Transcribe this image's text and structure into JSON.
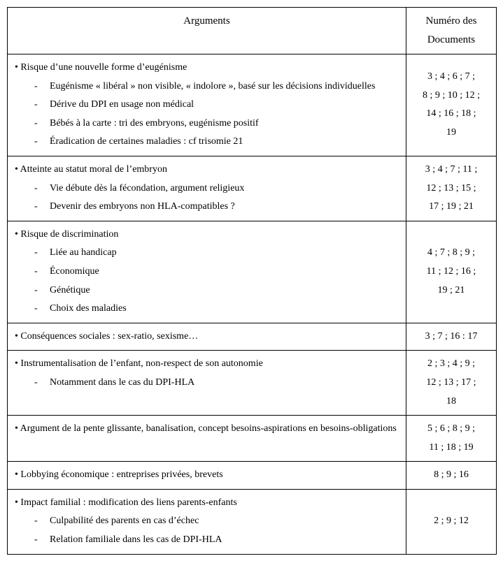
{
  "header": {
    "col_arguments": "Arguments",
    "col_numero_l1": "Numéro des",
    "col_numero_l2": "Documents"
  },
  "rows": [
    {
      "lead": "• Risque d’une nouvelle forme d’eugénisme",
      "subs": [
        "Eugénisme « libéral » non visible, « indolore », basé sur les décisions individuelles",
        "Dérive du DPI en usage non médical",
        "Bébés à la carte : tri des embryons, eugénisme positif",
        "Éradication de certaines maladies : cf trisomie 21"
      ],
      "num_lines": [
        "3 ; 4 ; 6 ; 7 ;",
        "8 ; 9 ; 10 ; 12 ;",
        "14 ; 16 ; 18 ;",
        "19"
      ]
    },
    {
      "lead": "• Atteinte au statut moral de l’embryon",
      "subs": [
        "Vie débute dès la fécondation, argument religieux",
        "Devenir des embryons non HLA-compatibles ?"
      ],
      "num_lines": [
        "3 ; 4 ; 7 ; 11 ;",
        "12 ; 13 ; 15 ;",
        "17 ; 19 ; 21"
      ]
    },
    {
      "lead": "• Risque de discrimination",
      "subs": [
        "Liée au handicap",
        "Économique",
        "Génétique",
        "Choix des maladies"
      ],
      "num_lines": [
        "4 ; 7 ; 8 ; 9 ;",
        "11 ; 12 ; 16 ;",
        "19 ; 21"
      ]
    },
    {
      "lead": "• Conséquences sociales : sex-ratio, sexisme…",
      "subs": [],
      "num_lines": [
        "3 ; 7 ; 16 : 17"
      ]
    },
    {
      "lead": "• Instrumentalisation de l’enfant, non-respect de son autonomie",
      "subs": [
        "Notamment dans le cas du DPI-HLA"
      ],
      "num_lines": [
        "2 ; 3 ; 4 ; 9 ;",
        "12 ; 13 ; 17 ;",
        "18"
      ]
    },
    {
      "lead": "• Argument de la pente glissante, banalisation, concept besoins-aspirations en besoins-obligations",
      "subs": [],
      "num_lines": [
        "5 ; 6 ; 8 ; 9 ;",
        "11 ; 18 ; 19"
      ]
    },
    {
      "lead": "• Lobbying économique : entreprises privées, brevets",
      "subs": [],
      "num_lines": [
        "8 ; 9 ; 16"
      ]
    },
    {
      "lead": "• Impact familial : modification des liens parents-enfants",
      "subs": [
        "Culpabilité des parents en cas d’échec",
        "Relation familiale dans les cas de DPI-HLA"
      ],
      "num_lines": [
        "2 ; 9 ; 12"
      ]
    }
  ]
}
